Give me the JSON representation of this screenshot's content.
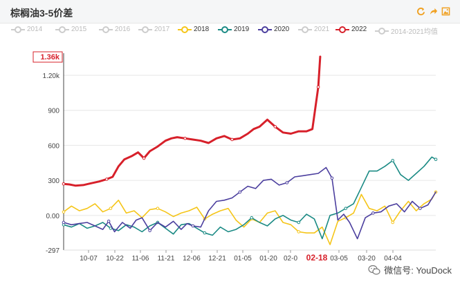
{
  "header": {
    "title": "棕榈油3-5价差"
  },
  "watermark": {
    "text": "微信号: YouDock",
    "icon": "wechat-icon"
  },
  "toolbar": {
    "icons": [
      "refresh-icon",
      "share-icon",
      "save-image-icon"
    ],
    "color": "#f0a020"
  },
  "legend": [
    {
      "name": "2014",
      "color": "#cccccc",
      "active": false
    },
    {
      "name": "2015",
      "color": "#cccccc",
      "active": false
    },
    {
      "name": "2016",
      "color": "#cccccc",
      "active": false
    },
    {
      "name": "2017",
      "color": "#cccccc",
      "active": false
    },
    {
      "name": "2018",
      "color": "#f5c518",
      "active": true
    },
    {
      "name": "2019",
      "color": "#1a8a84",
      "active": true
    },
    {
      "name": "2020",
      "color": "#4b3e9e",
      "active": true
    },
    {
      "name": "2021",
      "color": "#cccccc",
      "active": false
    },
    {
      "name": "2022",
      "color": "#d7202a",
      "active": true
    },
    {
      "name": "2014-2021均值",
      "color": "#cccccc",
      "active": false
    }
  ],
  "chart_data": {
    "type": "line",
    "title": "棕榈油3-5价差",
    "x_ticks": [
      "10-07",
      "10-22",
      "11-06",
      "11-21",
      "12-06",
      "12-21",
      "01-05",
      "01-20",
      "02-0",
      "02-18",
      "03-05",
      "03-20",
      "04-04"
    ],
    "y_ticks": [
      "-297",
      "0.00",
      "300",
      "600",
      "900",
      "1.20k",
      "1.36k"
    ],
    "ylim": [
      -297,
      1360
    ],
    "pointer": {
      "x_label": "02-18",
      "y_label": "1.36k"
    },
    "grid": true,
    "series": [
      {
        "name": "2022",
        "color": "#d7202a",
        "width": 3,
        "x": [
          0,
          3,
          6,
          10,
          14,
          18,
          22,
          25,
          28,
          31,
          35,
          38,
          41,
          44,
          48,
          52,
          55,
          58,
          62,
          66,
          70,
          74,
          78,
          82,
          86,
          90,
          94,
          97,
          100,
          104,
          108,
          112,
          116,
          120,
          124,
          127,
          130,
          131
        ],
        "y": [
          270,
          265,
          255,
          260,
          275,
          290,
          310,
          330,
          420,
          480,
          510,
          540,
          490,
          550,
          590,
          640,
          660,
          670,
          660,
          650,
          640,
          620,
          660,
          680,
          650,
          660,
          700,
          740,
          760,
          820,
          760,
          710,
          700,
          720,
          720,
          740,
          1100,
          1360
        ]
      },
      {
        "name": "2020",
        "color": "#4b3e9e",
        "width": 1.6,
        "x": [
          0,
          4,
          8,
          12,
          16,
          20,
          23,
          26,
          30,
          34,
          37,
          40,
          44,
          48,
          52,
          56,
          60,
          63,
          66,
          70,
          74,
          78,
          82,
          86,
          90,
          94,
          98,
          102,
          106,
          110,
          114,
          118,
          122,
          126,
          130,
          134,
          137,
          140,
          143,
          146,
          150,
          154,
          158,
          162,
          166,
          170,
          174,
          178,
          182,
          186,
          190
        ],
        "y": [
          -60,
          -80,
          -70,
          -60,
          -90,
          -120,
          -50,
          -140,
          -60,
          -110,
          -40,
          -20,
          -130,
          -60,
          -100,
          -50,
          -120,
          -70,
          -90,
          -100,
          40,
          120,
          130,
          150,
          200,
          250,
          230,
          300,
          310,
          260,
          280,
          330,
          340,
          350,
          360,
          410,
          320,
          -40,
          10,
          -60,
          -200,
          -20,
          20,
          30,
          80,
          100,
          30,
          120,
          60,
          90,
          200
        ]
      },
      {
        "name": "2019",
        "color": "#1a8a84",
        "width": 1.6,
        "x": [
          0,
          4,
          8,
          12,
          16,
          20,
          24,
          28,
          32,
          36,
          40,
          44,
          48,
          52,
          56,
          60,
          64,
          68,
          72,
          76,
          80,
          84,
          88,
          92,
          96,
          100,
          104,
          108,
          112,
          116,
          120,
          124,
          128,
          132,
          136,
          140,
          144,
          148,
          152,
          156,
          160,
          164,
          168,
          172,
          176,
          180,
          184,
          188,
          190
        ],
        "y": [
          -80,
          -100,
          -70,
          -110,
          -90,
          -60,
          -110,
          -130,
          -80,
          -100,
          -140,
          -90,
          -60,
          -110,
          -160,
          -80,
          -70,
          -110,
          -150,
          -170,
          -100,
          -140,
          -120,
          -80,
          -20,
          -60,
          -90,
          -30,
          0,
          -40,
          -60,
          10,
          -30,
          -200,
          0,
          20,
          60,
          100,
          240,
          380,
          380,
          420,
          470,
          350,
          300,
          360,
          420,
          500,
          480
        ]
      },
      {
        "name": "2018",
        "color": "#f5c518",
        "width": 1.6,
        "x": [
          0,
          4,
          8,
          12,
          16,
          20,
          24,
          28,
          32,
          36,
          40,
          44,
          48,
          52,
          56,
          60,
          64,
          68,
          72,
          76,
          80,
          84,
          88,
          92,
          96,
          100,
          104,
          108,
          112,
          116,
          120,
          124,
          128,
          132,
          136,
          140,
          144,
          148,
          152,
          156,
          160,
          164,
          168,
          172,
          176,
          180,
          184,
          188,
          190
        ],
        "y": [
          30,
          80,
          40,
          60,
          100,
          30,
          60,
          130,
          20,
          40,
          -20,
          50,
          60,
          30,
          -10,
          20,
          40,
          70,
          -30,
          10,
          40,
          60,
          -40,
          -100,
          -30,
          -60,
          20,
          40,
          -60,
          -80,
          -140,
          -150,
          -150,
          -100,
          -250,
          -50,
          -20,
          20,
          180,
          60,
          40,
          80,
          -60,
          40,
          120,
          40,
          100,
          140,
          200
        ]
      }
    ]
  }
}
